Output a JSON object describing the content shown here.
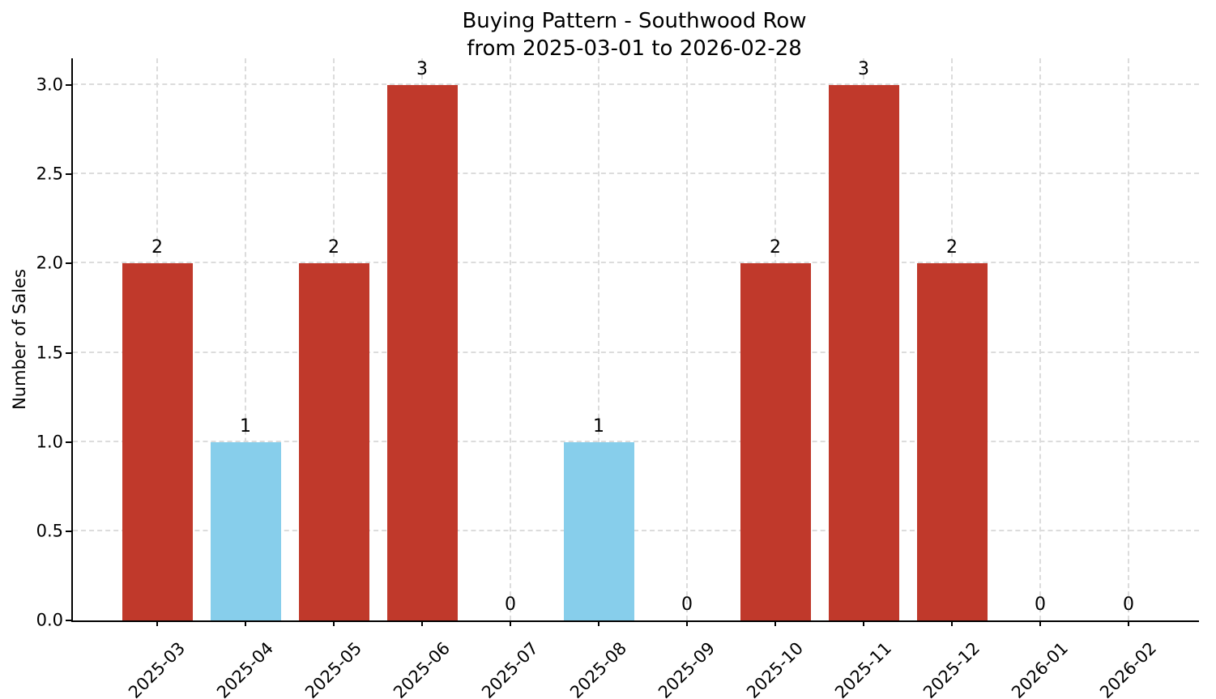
{
  "figure": {
    "title_line1": "Buying Pattern - Southwood Row",
    "title_line2": "from 2025-03-01 to 2026-02-28"
  },
  "chart_data": {
    "type": "bar",
    "title": "Buying Pattern - Southwood Row\nfrom 2025-03-01 to 2026-02-28",
    "xlabel": "",
    "ylabel": "Number of Sales",
    "categories": [
      "2025-03",
      "2025-04",
      "2025-05",
      "2025-06",
      "2025-07",
      "2025-08",
      "2025-09",
      "2025-10",
      "2025-11",
      "2025-12",
      "2026-01",
      "2026-02"
    ],
    "values": [
      2,
      1,
      2,
      3,
      0,
      1,
      0,
      2,
      3,
      2,
      0,
      0
    ],
    "bar_labels": [
      "2",
      "1",
      "2",
      "3",
      "0",
      "1",
      "0",
      "2",
      "3",
      "2",
      "0",
      "0"
    ],
    "bar_colors": [
      "#c0392b",
      "#87ceeb",
      "#c0392b",
      "#c0392b",
      "#c0392b",
      "#87ceeb",
      "#c0392b",
      "#c0392b",
      "#c0392b",
      "#c0392b",
      "#c0392b",
      "#c0392b"
    ],
    "ytick_labels": [
      "0.0",
      "0.5",
      "1.0",
      "1.5",
      "2.0",
      "2.5",
      "3.0"
    ],
    "ytick_values": [
      0,
      0.5,
      1,
      1.5,
      2,
      2.5,
      3
    ],
    "ylim": [
      0,
      3.15
    ],
    "grid": true,
    "grid_style": "dashed",
    "legend": null
  },
  "colors": {
    "red_bar": "#c0392b",
    "blue_bar": "#87ceeb",
    "grid": "#dcdcdc",
    "axis": "#000000",
    "background": "#ffffff",
    "text": "#000000"
  }
}
